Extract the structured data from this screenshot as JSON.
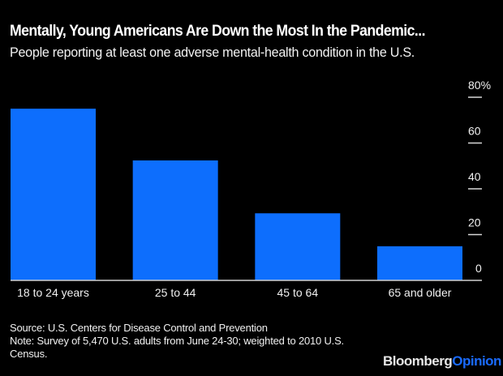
{
  "chart_data": {
    "type": "bar",
    "title": "Mentally, Young Americans Are Down the Most In the Pandemic...",
    "subtitle": "People reporting at least one adverse mental-health condition in the U.S.",
    "categories": [
      "18 to 24 years",
      "25 to 44",
      "45 to 64",
      "65 and older"
    ],
    "values": [
      75,
      52.4,
      29.3,
      14.9
    ],
    "xlabel": "",
    "ylabel": "",
    "ylim": [
      0,
      80
    ],
    "yticks": [
      0,
      20,
      40,
      60,
      80
    ],
    "ytick_labels": [
      "0",
      "20",
      "40",
      "60",
      "80%"
    ],
    "y_axis_position": "right",
    "grid": false,
    "bar_color": "#0d6efd",
    "background": "#000000"
  },
  "footer": {
    "source": "Source: U.S. Centers for Disease Control and Prevention",
    "note_line1": "Note: Survey of 5,470 U.S. adults from June 24-30; weighted to 2010 U.S.",
    "note_line2": "Census."
  },
  "brand": {
    "part1": "Bloomberg",
    "part2": "Opinion"
  }
}
